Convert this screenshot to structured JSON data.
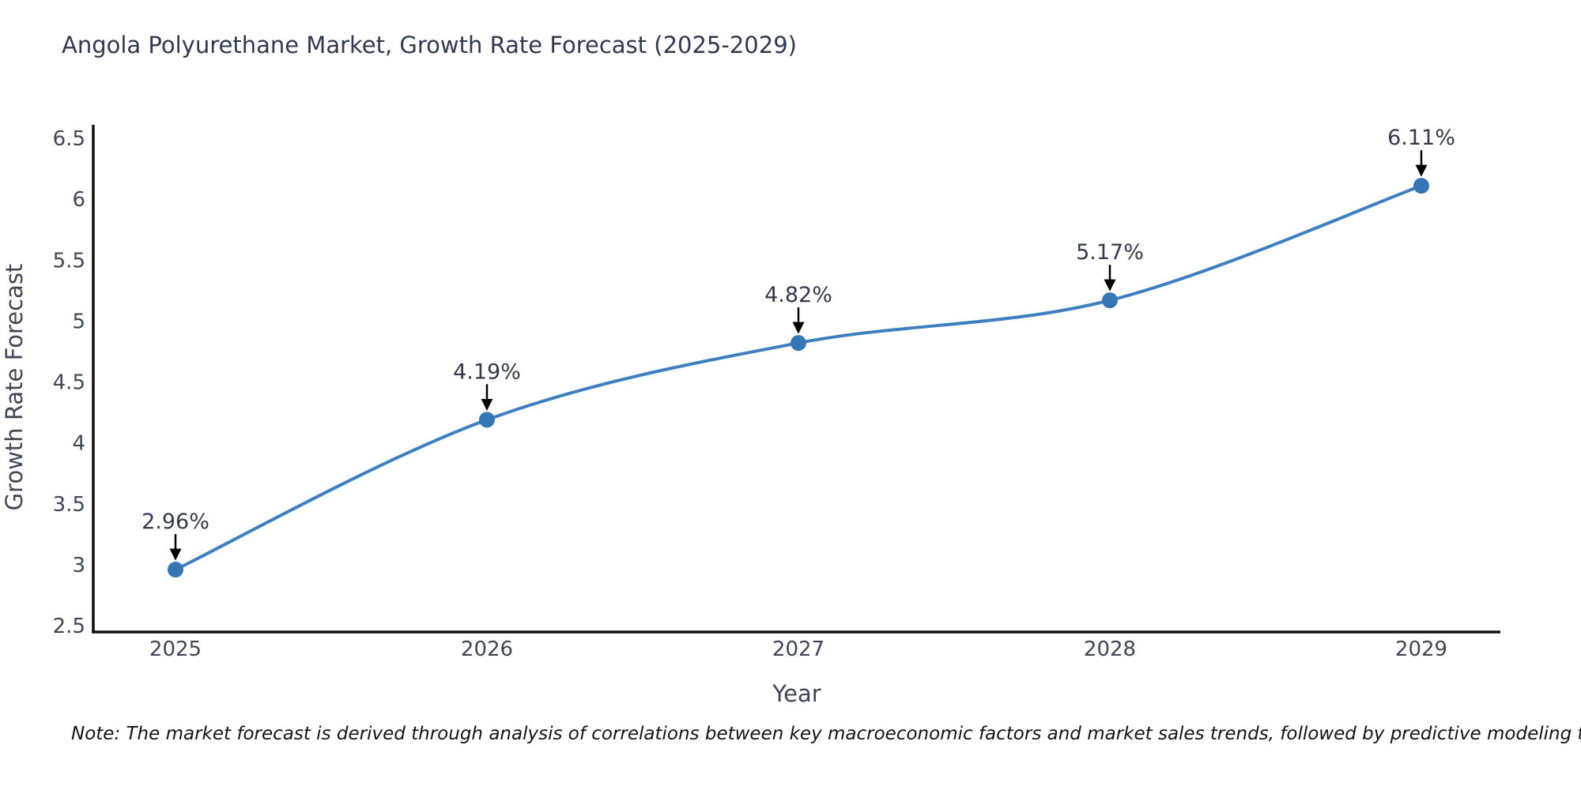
{
  "title": "Angola Polyurethane Market, Growth Rate Forecast (2025-2029)",
  "note": "Note: The market forecast is derived through analysis of correlations between key macroeconomic factors and market sales trends, followed by predictive modeling to project future sales",
  "chart_data": {
    "type": "line",
    "title": "Angola Polyurethane Market, Growth Rate Forecast (2025-2029)",
    "xlabel": "Year",
    "ylabel": "Growth Rate Forecast",
    "x": [
      2025,
      2026,
      2027,
      2028,
      2029
    ],
    "series": [
      {
        "name": "Growth Rate Forecast",
        "values": [
          2.96,
          4.19,
          4.82,
          5.17,
          6.11
        ],
        "labels": [
          "2.96%",
          "4.19%",
          "4.82%",
          "5.17%",
          "6.11%"
        ]
      }
    ],
    "ylim": [
      2.5,
      6.5
    ],
    "y_ticks": [
      2.5,
      3,
      3.5,
      4,
      4.5,
      5,
      5.5,
      6,
      6.5
    ],
    "grid": false,
    "legend": false,
    "line_shape": "spline",
    "annotation_style": "percent label above point with black arrow pointing down to marker",
    "colors": {
      "line": "#3d7fc0",
      "marker": "#3577b4",
      "axis": "#111111",
      "tick_label": "#3f4656",
      "axis_title": "#3f4656",
      "chart_title": "#2f3a52",
      "annotation_text": "#323a4d",
      "arrow": "#000000",
      "note_text": "#141414",
      "background": "#ffffff"
    }
  }
}
